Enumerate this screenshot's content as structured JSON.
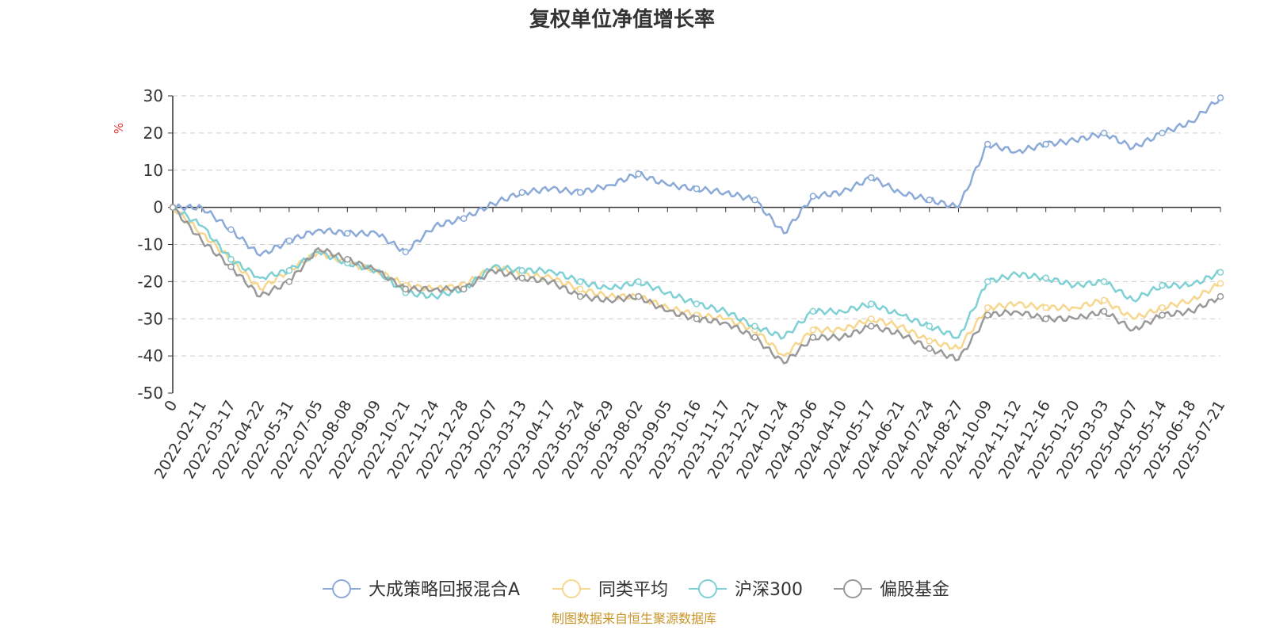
{
  "chart_data": {
    "type": "line",
    "title": "复权单位净值增长率",
    "ylabel": "%",
    "ylim": [
      -50,
      30
    ],
    "yticks": [
      30,
      20,
      10,
      0,
      -10,
      -20,
      -30,
      -40,
      -50
    ],
    "grid": true,
    "legend_position": "bottom",
    "x": [
      "0",
      "2022-02-11",
      "2022-03-17",
      "2022-04-22",
      "2022-05-31",
      "2022-07-05",
      "2022-08-08",
      "2022-09-09",
      "2022-10-21",
      "2022-11-24",
      "2022-12-28",
      "2023-02-07",
      "2023-03-13",
      "2023-04-17",
      "2023-05-24",
      "2023-06-29",
      "2023-08-02",
      "2023-09-05",
      "2023-10-16",
      "2023-11-17",
      "2023-12-21",
      "2024-01-24",
      "2024-03-06",
      "2024-04-10",
      "2024-05-17",
      "2024-06-21",
      "2024-07-24",
      "2024-08-27",
      "2024-10-09",
      "2024-11-12",
      "2024-12-16",
      "2025-01-20",
      "2025-03-03",
      "2025-04-07",
      "2025-05-14",
      "2025-06-18",
      "2025-07-21"
    ],
    "series": [
      {
        "name": "大成策略回报混合A",
        "color": "#8caad8",
        "values": [
          0,
          0,
          -6,
          -13,
          -9,
          -6,
          -7,
          -7,
          -12,
          -5,
          -3,
          1,
          4,
          5,
          4,
          6,
          9,
          6,
          5,
          4,
          2,
          -7,
          3,
          4,
          8,
          4,
          2,
          0,
          17,
          15,
          17,
          18,
          20,
          16,
          20,
          23,
          29.5
        ]
      },
      {
        "name": "同类平均",
        "color": "#f7d68e",
        "values": [
          0,
          -7,
          -14,
          -22,
          -17,
          -12,
          -15,
          -17,
          -21,
          -22,
          -21,
          -16,
          -18,
          -19,
          -22,
          -24,
          -24,
          -27,
          -29,
          -30,
          -33,
          -40,
          -33,
          -33,
          -30,
          -32,
          -36,
          -38,
          -27,
          -26,
          -27,
          -27,
          -25,
          -30,
          -27,
          -25,
          -20.5
        ]
      },
      {
        "name": "沪深300",
        "color": "#7fd0d4",
        "values": [
          0,
          -5,
          -14,
          -19,
          -17,
          -12,
          -15,
          -17,
          -23,
          -24,
          -22,
          -16,
          -17,
          -17,
          -20,
          -22,
          -20,
          -23,
          -26,
          -28,
          -32,
          -35,
          -28,
          -28,
          -26,
          -29,
          -32,
          -35,
          -20,
          -18,
          -19,
          -21,
          -20,
          -25,
          -21,
          -21,
          -17.5
        ]
      },
      {
        "name": "偏股基金",
        "color": "#999999",
        "values": [
          0,
          -9,
          -16,
          -24,
          -20,
          -11,
          -14,
          -17,
          -22,
          -22,
          -22,
          -17,
          -19,
          -20,
          -24,
          -25,
          -24,
          -28,
          -30,
          -31,
          -35,
          -42,
          -35,
          -35,
          -32,
          -34,
          -38,
          -41,
          -29,
          -28,
          -30,
          -30,
          -28,
          -33,
          -29,
          -28,
          -24
        ]
      }
    ]
  },
  "footer": {
    "source": "制图数据来自恒生聚源数据库"
  }
}
